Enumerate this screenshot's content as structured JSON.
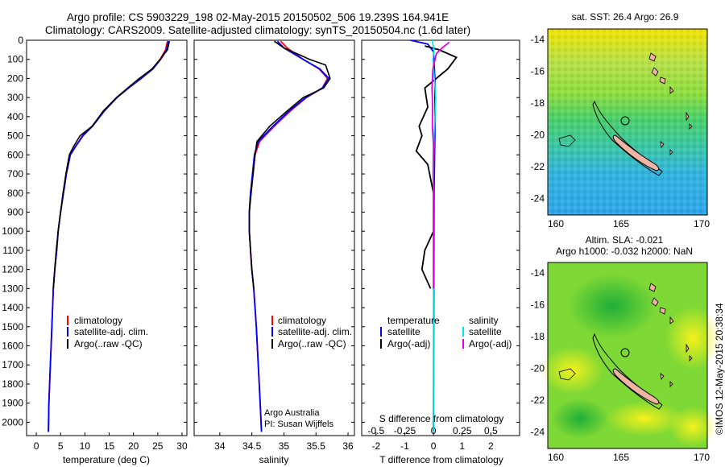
{
  "header": {
    "line1": "Argo profile: CS 5903229_198 02-May-2015 20150502_506 19.239S 164.941E",
    "line2": "Climatology: CARS2009. Satellite-adjusted climatology: synTS_20150504.nc (1.6d later)"
  },
  "timestamp": "©IMOS 12-May-2015 20:38:34",
  "colors": {
    "climatology": "#ff0000",
    "satellite": "#0000ff",
    "argo": "#000000",
    "salinity_satellite": "#00e5e5",
    "salinity_argo": "#e000e0"
  },
  "chart_data": [
    {
      "type": "line",
      "name": "temperature-profile",
      "xlabel": "temperature (deg C)",
      "xlim": [
        -2,
        31
      ],
      "xticks": [
        0,
        5,
        10,
        15,
        20,
        25,
        30
      ],
      "ylim": [
        2070,
        0
      ],
      "yticks": [
        0,
        100,
        200,
        300,
        400,
        500,
        600,
        700,
        800,
        900,
        1000,
        1100,
        1200,
        1300,
        1400,
        1500,
        1600,
        1700,
        1800,
        1900,
        2000
      ],
      "legend": [
        "climatology",
        "satellite-adj. clim.",
        "Argo(..raw -QC)"
      ],
      "series": [
        {
          "name": "climatology",
          "color": "#ff0000",
          "points": [
            [
              27.0,
              5
            ],
            [
              26.6,
              50
            ],
            [
              25.5,
              100
            ],
            [
              24,
              150
            ],
            [
              21.5,
              200
            ],
            [
              19,
              250
            ],
            [
              16.5,
              300
            ],
            [
              14,
              370
            ],
            [
              11.5,
              450
            ],
            [
              9.5,
              500
            ],
            [
              8,
              560
            ],
            [
              7,
              600
            ],
            [
              6.2,
              700
            ],
            [
              5.6,
              800
            ],
            [
              5.0,
              900
            ],
            [
              4.5,
              1000
            ],
            [
              4.2,
              1100
            ],
            [
              3.8,
              1200
            ],
            [
              3.5,
              1300
            ],
            [
              3.2,
              1500
            ],
            [
              2.9,
              1700
            ],
            [
              2.6,
              1900
            ],
            [
              2.5,
              2050
            ]
          ]
        },
        {
          "name": "satellite",
          "color": "#0000ff",
          "points": [
            [
              27.2,
              5
            ],
            [
              26.8,
              50
            ],
            [
              25.6,
              100
            ],
            [
              24,
              150
            ],
            [
              21.6,
              200
            ],
            [
              19,
              250
            ],
            [
              16.6,
              300
            ],
            [
              14,
              370
            ],
            [
              11.6,
              450
            ],
            [
              9.6,
              500
            ],
            [
              8,
              560
            ],
            [
              7,
              600
            ],
            [
              6.2,
              700
            ],
            [
              5.6,
              800
            ],
            [
              5.0,
              900
            ],
            [
              4.5,
              1000
            ],
            [
              4.2,
              1100
            ],
            [
              3.8,
              1200
            ],
            [
              3.5,
              1300
            ],
            [
              3.2,
              1500
            ],
            [
              2.9,
              1700
            ],
            [
              2.6,
              1900
            ],
            [
              2.5,
              2050
            ]
          ]
        },
        {
          "name": "argo",
          "color": "#000000",
          "points": [
            [
              27.4,
              5
            ],
            [
              27.0,
              50
            ],
            [
              25.5,
              100
            ],
            [
              23.8,
              150
            ],
            [
              21.2,
              200
            ],
            [
              18.8,
              250
            ],
            [
              16.5,
              300
            ],
            [
              13.8,
              370
            ],
            [
              11.5,
              450
            ],
            [
              9.0,
              500
            ],
            [
              7.6,
              560
            ],
            [
              6.8,
              600
            ],
            [
              6.1,
              700
            ],
            [
              5.5,
              800
            ],
            [
              5.0,
              900
            ],
            [
              4.5,
              1000
            ],
            [
              4.1,
              1100
            ],
            [
              3.8,
              1200
            ],
            [
              3.5,
              1300
            ]
          ]
        }
      ]
    },
    {
      "type": "line",
      "name": "salinity-profile",
      "xlabel": "salinity",
      "xlim": [
        33.6,
        36.1
      ],
      "xticks": [
        34,
        34.5,
        35,
        35.5,
        36
      ],
      "ylim": [
        2070,
        0
      ],
      "legend": [
        "climatology",
        "satellite-adj. clim.",
        "Argo(..raw -QC)"
      ],
      "annotation": [
        "Argo Australia",
        "PI: Susan Wijffels"
      ],
      "series": [
        {
          "name": "climatology",
          "color": "#ff0000",
          "points": [
            [
              34.95,
              5
            ],
            [
              35.05,
              40
            ],
            [
              35.3,
              100
            ],
            [
              35.55,
              150
            ],
            [
              35.68,
              200
            ],
            [
              35.6,
              250
            ],
            [
              35.35,
              300
            ],
            [
              35.1,
              370
            ],
            [
              34.85,
              450
            ],
            [
              34.62,
              530
            ],
            [
              34.55,
              600
            ],
            [
              34.52,
              700
            ],
            [
              34.48,
              800
            ],
            [
              34.46,
              900
            ],
            [
              34.46,
              1000
            ],
            [
              34.48,
              1100
            ],
            [
              34.5,
              1200
            ],
            [
              34.53,
              1300
            ],
            [
              34.57,
              1500
            ],
            [
              34.6,
              1700
            ],
            [
              34.63,
              1900
            ],
            [
              34.65,
              2050
            ]
          ]
        },
        {
          "name": "satellite",
          "color": "#0000ff",
          "points": [
            [
              34.9,
              5
            ],
            [
              35.0,
              40
            ],
            [
              35.3,
              100
            ],
            [
              35.56,
              150
            ],
            [
              35.7,
              200
            ],
            [
              35.6,
              250
            ],
            [
              35.34,
              300
            ],
            [
              35.08,
              370
            ],
            [
              34.83,
              450
            ],
            [
              34.6,
              530
            ],
            [
              34.54,
              600
            ],
            [
              34.51,
              700
            ],
            [
              34.48,
              800
            ],
            [
              34.46,
              900
            ],
            [
              34.46,
              1000
            ],
            [
              34.48,
              1100
            ],
            [
              34.5,
              1200
            ],
            [
              34.53,
              1300
            ],
            [
              34.57,
              1500
            ],
            [
              34.6,
              1700
            ],
            [
              34.63,
              1900
            ],
            [
              34.65,
              2050
            ]
          ]
        },
        {
          "name": "argo",
          "color": "#000000",
          "points": [
            [
              34.85,
              5
            ],
            [
              35.0,
              40
            ],
            [
              35.4,
              100
            ],
            [
              35.65,
              130
            ],
            [
              35.72,
              200
            ],
            [
              35.62,
              250
            ],
            [
              35.3,
              300
            ],
            [
              35.05,
              370
            ],
            [
              34.78,
              450
            ],
            [
              34.58,
              530
            ],
            [
              34.55,
              600
            ],
            [
              34.52,
              700
            ],
            [
              34.49,
              800
            ],
            [
              34.46,
              900
            ],
            [
              34.46,
              1000
            ],
            [
              34.48,
              1100
            ],
            [
              34.5,
              1200
            ],
            [
              34.53,
              1300
            ]
          ]
        }
      ]
    },
    {
      "type": "line",
      "name": "difference-profile",
      "xlabel": "T difference from climatology",
      "xlabel_top": "S difference from climatology",
      "xlim": [
        -2.5,
        3
      ],
      "xticks": [
        -2,
        -1,
        0,
        1,
        2
      ],
      "xlim_top": [
        -0.625,
        0.75
      ],
      "xticks_top": [
        -0.5,
        -0.25,
        0,
        0.25,
        0.5
      ],
      "ylim": [
        2070,
        0
      ],
      "legend": {
        "temperature_title": "temperature",
        "salinity_title": "salinity",
        "items": [
          "satellite",
          "Argo(-adj)",
          "satellite",
          "Argo(-adj)"
        ]
      },
      "series": [
        {
          "name": "T satellite",
          "color": "#0000ff",
          "points": [
            [
              -0.8,
              0
            ],
            [
              -0.2,
              20
            ],
            [
              0,
              60
            ],
            [
              0.05,
              200
            ],
            [
              0.05,
              500
            ],
            [
              0.02,
              800
            ],
            [
              0,
              2050
            ]
          ]
        },
        {
          "name": "T argo",
          "color": "#000000",
          "points": [
            [
              -0.3,
              30
            ],
            [
              0.2,
              50
            ],
            [
              0.8,
              90
            ],
            [
              0.5,
              150
            ],
            [
              -0.3,
              250
            ],
            [
              -0.2,
              350
            ],
            [
              -0.5,
              450
            ],
            [
              -0.4,
              500
            ],
            [
              -0.6,
              580
            ],
            [
              -0.2,
              650
            ],
            [
              0,
              800
            ],
            [
              0,
              1000
            ],
            [
              -0.3,
              1100
            ],
            [
              -0.4,
              1200
            ],
            [
              -0.1,
              1300
            ]
          ]
        },
        {
          "name": "S satellite",
          "color": "#00e5e5",
          "points": [
            [
              -0.05,
              0
            ],
            [
              0.02,
              50
            ],
            [
              -0.02,
              100
            ],
            [
              0.08,
              300
            ],
            [
              0.02,
              500
            ],
            [
              0,
              700
            ],
            [
              0,
              2050
            ]
          ]
        },
        {
          "name": "S argo",
          "color": "#e000e0",
          "points": [
            [
              0.55,
              10
            ],
            [
              0.3,
              40
            ],
            [
              0.1,
              70
            ],
            [
              -0.02,
              150
            ],
            [
              -0.05,
              250
            ],
            [
              -0.03,
              350
            ],
            [
              -0.04,
              450
            ],
            [
              0,
              550
            ],
            [
              -0.01,
              700
            ],
            [
              0,
              800
            ],
            [
              0,
              1300
            ]
          ]
        }
      ]
    }
  ],
  "maps": [
    {
      "name": "sst-map",
      "title": "sat. SST: 26.4  Argo: 26.9",
      "xticks": [
        "160",
        "165",
        "170"
      ],
      "yticks": [
        "-14",
        "-16",
        "-18",
        "-20",
        "-22",
        "-24"
      ]
    },
    {
      "name": "sla-map",
      "title1": "Altim. SLA: -0.021",
      "title2": "Argo h1000: -0.032  h2000: NaN",
      "xticks": [
        "160",
        "165",
        "170"
      ],
      "yticks": [
        "-14",
        "-16",
        "-18",
        "-20",
        "-22",
        "-24"
      ]
    }
  ]
}
